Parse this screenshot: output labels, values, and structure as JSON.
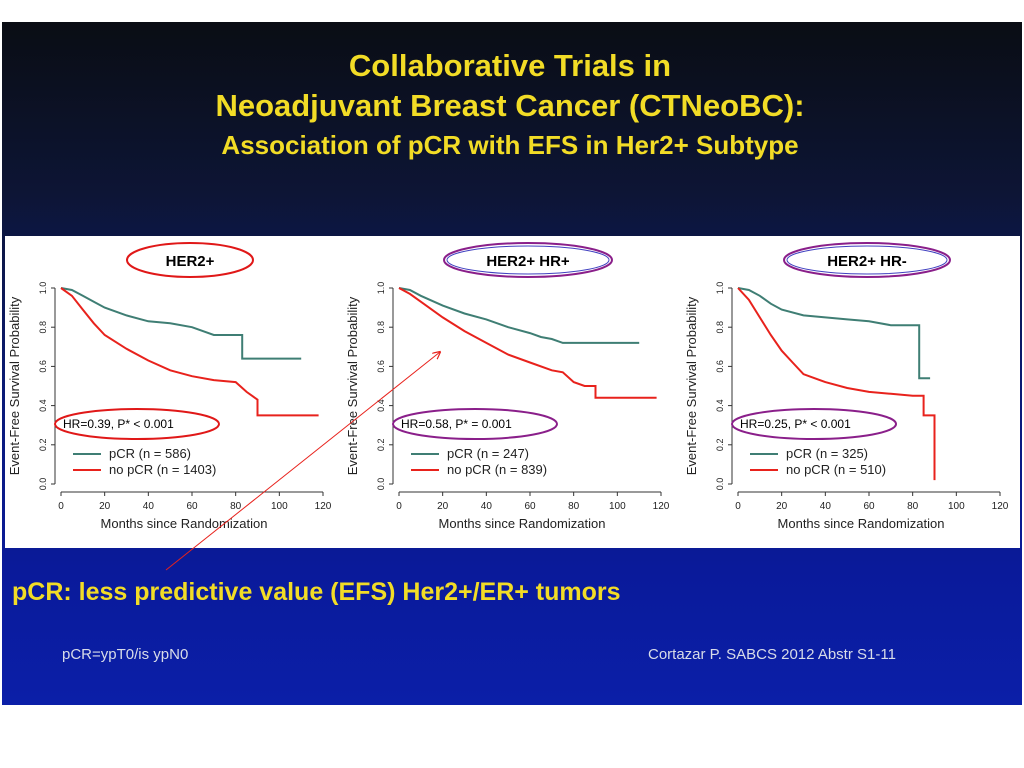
{
  "slide": {
    "title_line1": "Collaborative Trials in",
    "title_line2": "Neoadjuvant Breast Cancer (CTNeoBC):",
    "title_line3": "Association of pCR with EFS in Her2+ Subtype",
    "subtitle": "pCR: less predictive value (EFS) Her2+/ER+ tumors",
    "footnote_left": "pCR=ypT0/is ypN0",
    "footnote_right": "Cortazar P. SABCS 2012  Abstr S1-11"
  },
  "colors": {
    "pcr": "#3f7e74",
    "no_pcr": "#e8221c",
    "title_yellow": "#f2dc26",
    "ellipse_red": "#e01818",
    "ellipse_purple": "#8a1f8a"
  },
  "chart_data": [
    {
      "type": "line",
      "title": "HER2+",
      "xlabel": "Months since Randomization",
      "ylabel": "Event-Free Survival Probability",
      "xlim": [
        0,
        120
      ],
      "ylim": [
        0,
        1
      ],
      "xticks": [
        "0",
        "20",
        "40",
        "60",
        "80",
        "100",
        "120"
      ],
      "yticks": [
        "0.0",
        "0.2",
        "0.4",
        "0.6",
        "0.8",
        "1.0"
      ],
      "annotation": "HR=0.39, P* < 0.001",
      "legend": [
        "pCR (n = 586)",
        "no pCR (n = 1403)"
      ],
      "series": [
        {
          "name": "pCR",
          "x": [
            0,
            5,
            10,
            15,
            20,
            30,
            40,
            50,
            60,
            70,
            83,
            83,
            110
          ],
          "y": [
            1,
            0.99,
            0.96,
            0.93,
            0.9,
            0.86,
            0.83,
            0.82,
            0.8,
            0.76,
            0.76,
            0.64,
            0.64
          ]
        },
        {
          "name": "no pCR",
          "x": [
            0,
            5,
            10,
            15,
            20,
            30,
            40,
            50,
            60,
            70,
            80,
            85,
            90,
            90,
            118
          ],
          "y": [
            1,
            0.96,
            0.89,
            0.82,
            0.76,
            0.69,
            0.63,
            0.58,
            0.55,
            0.53,
            0.52,
            0.47,
            0.43,
            0.35,
            0.35
          ]
        }
      ]
    },
    {
      "type": "line",
      "title": "HER2+ HR+",
      "xlabel": "Months since Randomization",
      "ylabel": "Event-Free Survival Probability",
      "xlim": [
        0,
        120
      ],
      "ylim": [
        0,
        1
      ],
      "xticks": [
        "0",
        "20",
        "40",
        "60",
        "80",
        "100",
        "120"
      ],
      "yticks": [
        "0.0",
        "0.2",
        "0.4",
        "0.6",
        "0.8",
        "1.0"
      ],
      "annotation": "HR=0.58, P* = 0.001",
      "legend": [
        "pCR (n = 247)",
        "no pCR (n = 839)"
      ],
      "series": [
        {
          "name": "pCR",
          "x": [
            0,
            5,
            10,
            20,
            30,
            40,
            50,
            60,
            65,
            70,
            75,
            80,
            110
          ],
          "y": [
            1,
            0.99,
            0.96,
            0.91,
            0.87,
            0.84,
            0.8,
            0.77,
            0.75,
            0.74,
            0.72,
            0.72,
            0.72
          ]
        },
        {
          "name": "no pCR",
          "x": [
            0,
            5,
            10,
            20,
            30,
            40,
            50,
            60,
            70,
            75,
            80,
            85,
            90,
            90,
            118
          ],
          "y": [
            1,
            0.97,
            0.93,
            0.85,
            0.78,
            0.72,
            0.66,
            0.62,
            0.58,
            0.57,
            0.52,
            0.5,
            0.5,
            0.44,
            0.44
          ]
        }
      ]
    },
    {
      "type": "line",
      "title": "HER2+ HR-",
      "xlabel": "Months since Randomization",
      "ylabel": "Event-Free Survival Probability",
      "xlim": [
        0,
        120
      ],
      "ylim": [
        0,
        1
      ],
      "xticks": [
        "0",
        "20",
        "40",
        "60",
        "80",
        "100",
        "120"
      ],
      "yticks": [
        "0.0",
        "0.2",
        "0.4",
        "0.6",
        "0.8",
        "1.0"
      ],
      "annotation": "HR=0.25, P* < 0.001",
      "legend": [
        "pCR (n = 325)",
        "no pCR (n = 510)"
      ],
      "series": [
        {
          "name": "pCR",
          "x": [
            0,
            5,
            10,
            15,
            20,
            30,
            40,
            50,
            60,
            70,
            83,
            83,
            88
          ],
          "y": [
            1,
            0.99,
            0.96,
            0.92,
            0.89,
            0.86,
            0.85,
            0.84,
            0.83,
            0.81,
            0.81,
            0.54,
            0.54
          ]
        },
        {
          "name": "no pCR",
          "x": [
            0,
            5,
            10,
            15,
            20,
            25,
            30,
            40,
            50,
            60,
            70,
            80,
            85,
            85,
            90,
            90
          ],
          "y": [
            1,
            0.94,
            0.85,
            0.76,
            0.68,
            0.62,
            0.56,
            0.52,
            0.49,
            0.47,
            0.46,
            0.45,
            0.45,
            0.35,
            0.35,
            0.02
          ]
        }
      ]
    }
  ]
}
